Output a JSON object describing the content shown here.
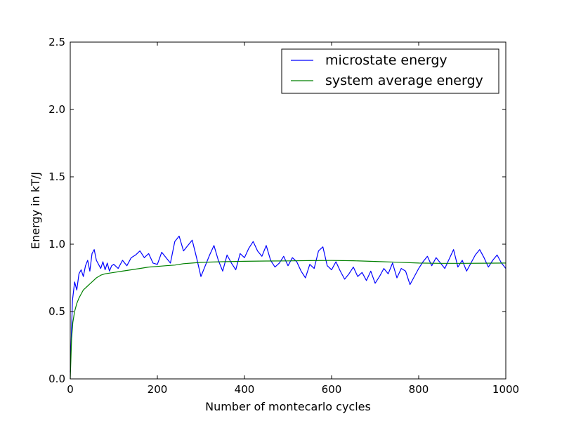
{
  "chart_data": {
    "type": "line",
    "title": "",
    "xlabel": "Number of montecarlo cycles",
    "ylabel": "Energy in kT/J",
    "xlim": [
      0,
      1000
    ],
    "ylim": [
      0,
      2.5
    ],
    "x_ticks": [
      "0",
      "200",
      "400",
      "600",
      "800",
      "1000"
    ],
    "y_ticks": [
      "0.0",
      "0.5",
      "1.0",
      "1.5",
      "2.0",
      "2.5"
    ],
    "grid": false,
    "legend_position": "top-right",
    "series": [
      {
        "name": "microstate energy",
        "color": "#0000ff",
        "x": [
          0,
          5,
          10,
          15,
          20,
          25,
          30,
          35,
          40,
          45,
          50,
          55,
          60,
          65,
          70,
          75,
          80,
          85,
          90,
          95,
          100,
          110,
          120,
          130,
          140,
          150,
          160,
          170,
          180,
          190,
          200,
          210,
          220,
          230,
          240,
          250,
          260,
          270,
          280,
          290,
          300,
          310,
          320,
          330,
          340,
          350,
          360,
          370,
          380,
          390,
          400,
          410,
          420,
          430,
          440,
          450,
          460,
          470,
          480,
          490,
          500,
          510,
          520,
          530,
          540,
          550,
          560,
          570,
          580,
          590,
          600,
          610,
          620,
          630,
          640,
          650,
          660,
          670,
          680,
          690,
          700,
          710,
          720,
          730,
          740,
          750,
          760,
          770,
          780,
          790,
          800,
          810,
          820,
          830,
          840,
          850,
          860,
          870,
          880,
          890,
          900,
          910,
          920,
          930,
          940,
          950,
          960,
          970,
          980,
          990,
          1000
        ],
        "y": [
          0.05,
          0.58,
          0.72,
          0.66,
          0.78,
          0.81,
          0.76,
          0.84,
          0.88,
          0.8,
          0.93,
          0.96,
          0.88,
          0.85,
          0.82,
          0.87,
          0.81,
          0.86,
          0.8,
          0.84,
          0.85,
          0.82,
          0.88,
          0.84,
          0.9,
          0.92,
          0.95,
          0.9,
          0.93,
          0.86,
          0.85,
          0.94,
          0.9,
          0.86,
          1.02,
          1.06,
          0.95,
          0.99,
          1.03,
          0.9,
          0.76,
          0.84,
          0.92,
          0.99,
          0.88,
          0.8,
          0.92,
          0.86,
          0.81,
          0.93,
          0.9,
          0.97,
          1.02,
          0.95,
          0.91,
          0.99,
          0.88,
          0.83,
          0.86,
          0.91,
          0.84,
          0.9,
          0.87,
          0.8,
          0.75,
          0.85,
          0.82,
          0.95,
          0.98,
          0.84,
          0.81,
          0.87,
          0.8,
          0.74,
          0.78,
          0.83,
          0.76,
          0.79,
          0.73,
          0.8,
          0.71,
          0.76,
          0.82,
          0.78,
          0.86,
          0.75,
          0.82,
          0.8,
          0.7,
          0.76,
          0.82,
          0.87,
          0.91,
          0.84,
          0.9,
          0.86,
          0.82,
          0.89,
          0.96,
          0.83,
          0.88,
          0.8,
          0.86,
          0.92,
          0.96,
          0.9,
          0.83,
          0.88,
          0.92,
          0.86,
          0.82
        ]
      },
      {
        "name": "system average energy",
        "color": "#008000",
        "x": [
          0,
          3,
          6,
          10,
          15,
          20,
          25,
          30,
          40,
          50,
          60,
          70,
          80,
          100,
          120,
          140,
          160,
          180,
          200,
          220,
          240,
          260,
          280,
          300,
          350,
          400,
          450,
          500,
          550,
          600,
          650,
          700,
          750,
          800,
          850,
          900,
          950,
          1000
        ],
        "y": [
          0.0,
          0.3,
          0.42,
          0.5,
          0.56,
          0.6,
          0.63,
          0.66,
          0.69,
          0.72,
          0.75,
          0.77,
          0.78,
          0.79,
          0.8,
          0.81,
          0.82,
          0.83,
          0.835,
          0.84,
          0.845,
          0.855,
          0.86,
          0.865,
          0.87,
          0.873,
          0.875,
          0.876,
          0.878,
          0.879,
          0.877,
          0.872,
          0.866,
          0.86,
          0.858,
          0.858,
          0.859,
          0.86
        ]
      }
    ]
  }
}
